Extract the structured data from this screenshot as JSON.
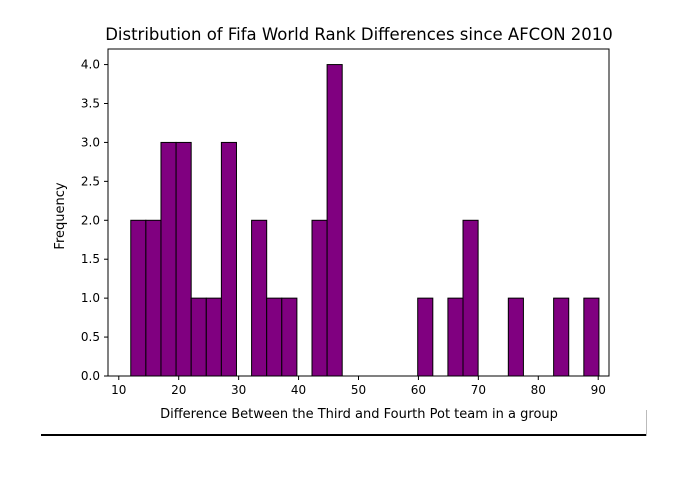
{
  "chart_data": {
    "type": "bar",
    "title": "Distribution of Fifa World Rank Differences since AFCON 2010",
    "xlabel": "Difference Between the Third and Fourth Pot team in a group",
    "ylabel": "Frequency",
    "xlim": [
      8.2,
      91.8
    ],
    "ylim": [
      0,
      4.2
    ],
    "xticks": [
      10,
      20,
      30,
      40,
      50,
      60,
      70,
      80,
      90
    ],
    "yticks": [
      "0.0",
      "0.5",
      "1.0",
      "1.5",
      "2.0",
      "2.5",
      "3.0",
      "3.5",
      "4.0"
    ],
    "bin_width": 2.52,
    "bars": [
      {
        "x0": 12.0,
        "value": 2
      },
      {
        "x0": 14.52,
        "value": 2
      },
      {
        "x0": 17.04,
        "value": 3
      },
      {
        "x0": 19.56,
        "value": 3
      },
      {
        "x0": 22.08,
        "value": 1
      },
      {
        "x0": 24.6,
        "value": 1
      },
      {
        "x0": 27.12,
        "value": 3
      },
      {
        "x0": 32.16,
        "value": 2
      },
      {
        "x0": 34.68,
        "value": 1
      },
      {
        "x0": 37.2,
        "value": 1
      },
      {
        "x0": 42.24,
        "value": 2
      },
      {
        "x0": 44.76,
        "value": 4
      },
      {
        "x0": 59.88,
        "value": 1
      },
      {
        "x0": 64.92,
        "value": 1
      },
      {
        "x0": 67.44,
        "value": 2
      },
      {
        "x0": 75.0,
        "value": 1
      },
      {
        "x0": 82.56,
        "value": 1
      },
      {
        "x0": 87.6,
        "value": 1
      }
    ],
    "bar_color": "#800080",
    "edge_color": "#000000",
    "grid": false
  }
}
